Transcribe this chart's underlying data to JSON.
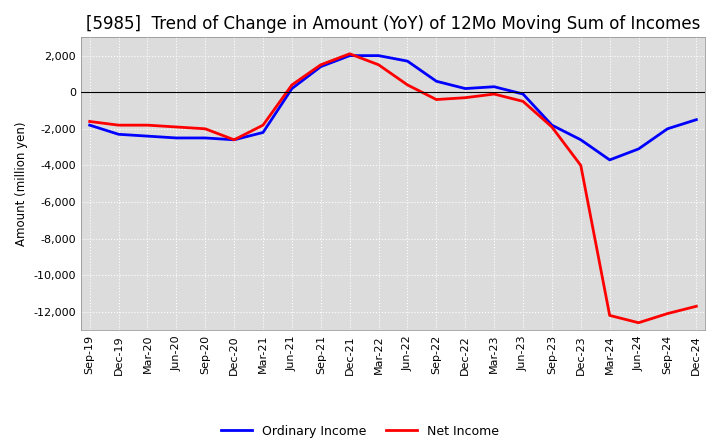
{
  "title": "[5985]  Trend of Change in Amount (YoY) of 12Mo Moving Sum of Incomes",
  "ylabel": "Amount (million yen)",
  "x_labels": [
    "Sep-19",
    "Dec-19",
    "Mar-20",
    "Jun-20",
    "Sep-20",
    "Dec-20",
    "Mar-21",
    "Jun-21",
    "Sep-21",
    "Dec-21",
    "Mar-22",
    "Jun-22",
    "Sep-22",
    "Dec-22",
    "Mar-23",
    "Jun-23",
    "Sep-23",
    "Dec-23",
    "Mar-24",
    "Jun-24",
    "Sep-24",
    "Dec-24"
  ],
  "ordinary_income": [
    -1800,
    -2300,
    -2400,
    -2500,
    -2500,
    -2600,
    -2200,
    200,
    1400,
    2000,
    2000,
    1700,
    600,
    200,
    300,
    -100,
    -1800,
    -2600,
    -3700,
    -3100,
    -2000,
    -1500
  ],
  "net_income": [
    -1600,
    -1800,
    -1800,
    -1900,
    -2000,
    -2600,
    -1800,
    400,
    1500,
    2100,
    1500,
    400,
    -400,
    -300,
    -100,
    -500,
    -1900,
    -4000,
    -12200,
    -12600,
    -12100,
    -11700
  ],
  "ordinary_color": "#0000ff",
  "net_color": "#ff0000",
  "ylim": [
    -13000,
    3000
  ],
  "yticks": [
    2000,
    0,
    -2000,
    -4000,
    -6000,
    -8000,
    -10000,
    -12000
  ],
  "background_color": "#dcdcdc",
  "grid_color": "#ffffff",
  "title_fontsize": 12
}
